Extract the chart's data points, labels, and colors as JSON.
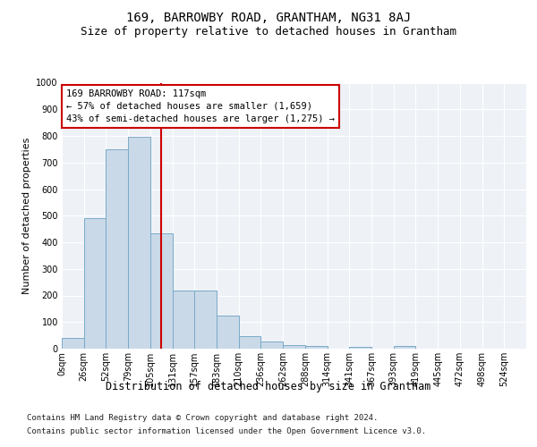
{
  "title": "169, BARROWBY ROAD, GRANTHAM, NG31 8AJ",
  "subtitle": "Size of property relative to detached houses in Grantham",
  "xlabel": "Distribution of detached houses by size in Grantham",
  "ylabel": "Number of detached properties",
  "bar_labels": [
    "0sqm",
    "26sqm",
    "52sqm",
    "79sqm",
    "105sqm",
    "131sqm",
    "157sqm",
    "183sqm",
    "210sqm",
    "236sqm",
    "262sqm",
    "288sqm",
    "314sqm",
    "341sqm",
    "367sqm",
    "393sqm",
    "419sqm",
    "445sqm",
    "472sqm",
    "498sqm",
    "524sqm"
  ],
  "bar_values": [
    40,
    490,
    750,
    795,
    435,
    220,
    220,
    125,
    47,
    28,
    13,
    10,
    0,
    8,
    0,
    10,
    0,
    0,
    0,
    0,
    0
  ],
  "bar_color": "#c9d9e8",
  "bar_edge_color": "#7aaac8",
  "vline_color": "#cc0000",
  "annotation_text": "169 BARROWBY ROAD: 117sqm\n← 57% of detached houses are smaller (1,659)\n43% of semi-detached houses are larger (1,275) →",
  "annotation_box_color": "#ffffff",
  "annotation_box_edge": "#cc0000",
  "ylim": [
    0,
    1000
  ],
  "bin_width": 26,
  "num_bins": 21,
  "vline_x": 117,
  "background_color": "#eef2f7",
  "grid_color": "#ffffff",
  "title_fontsize": 10,
  "subtitle_fontsize": 9,
  "xlabel_fontsize": 8.5,
  "ylabel_fontsize": 8,
  "tick_fontsize": 7,
  "annotation_fontsize": 7.5,
  "footer_fontsize": 6.5,
  "footer_line1": "Contains HM Land Registry data © Crown copyright and database right 2024.",
  "footer_line2": "Contains public sector information licensed under the Open Government Licence v3.0."
}
